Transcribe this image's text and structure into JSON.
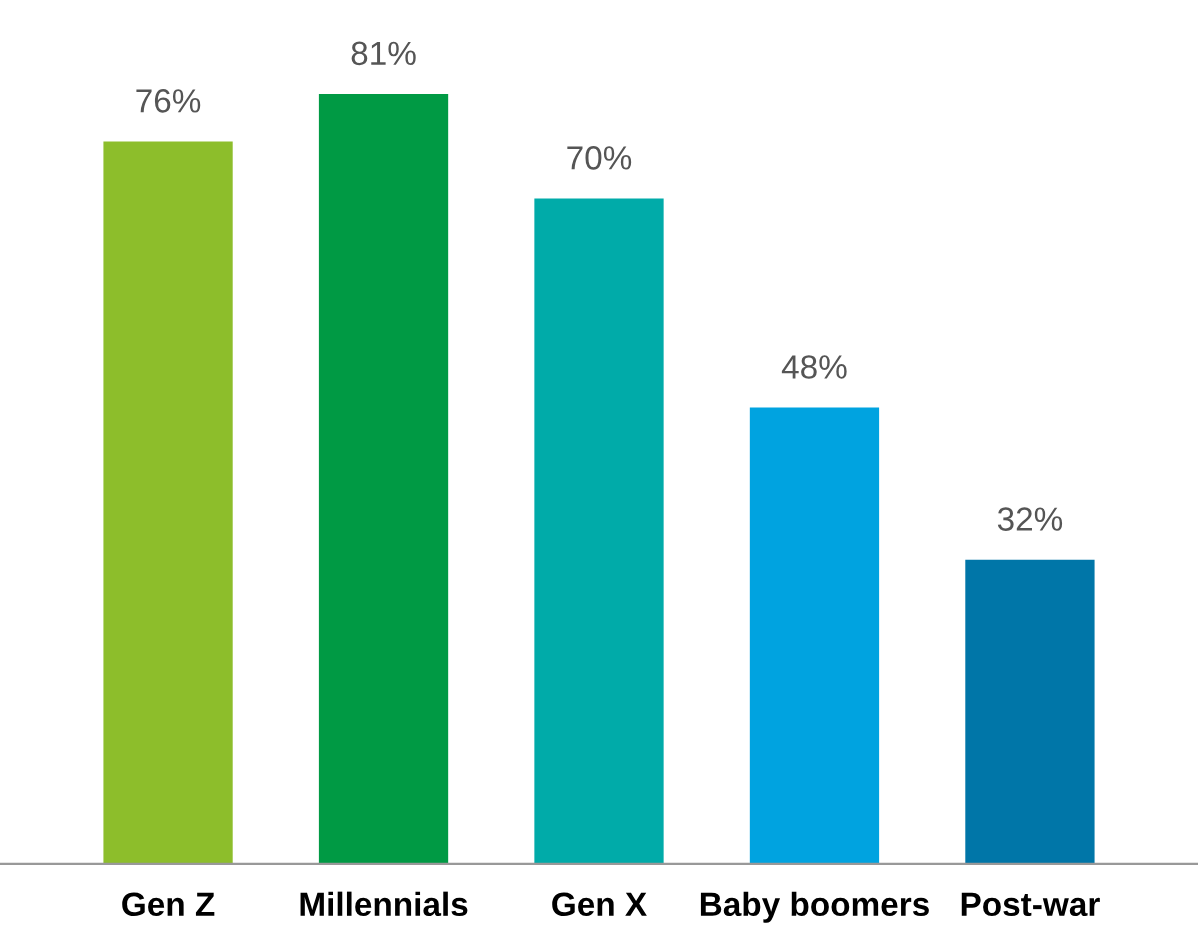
{
  "chart_data": {
    "type": "bar",
    "categories": [
      "Gen Z",
      "Millennials",
      "Gen X",
      "Baby boomers",
      "Post-war"
    ],
    "values": [
      76,
      81,
      70,
      48,
      32
    ],
    "colors": [
      "#8dbe2b",
      "#009a44",
      "#00aba9",
      "#00a3e0",
      "#0076a8"
    ],
    "value_labels": [
      "76%",
      "81%",
      "70%",
      "48%",
      "32%"
    ],
    "grid": false,
    "legend": false
  }
}
